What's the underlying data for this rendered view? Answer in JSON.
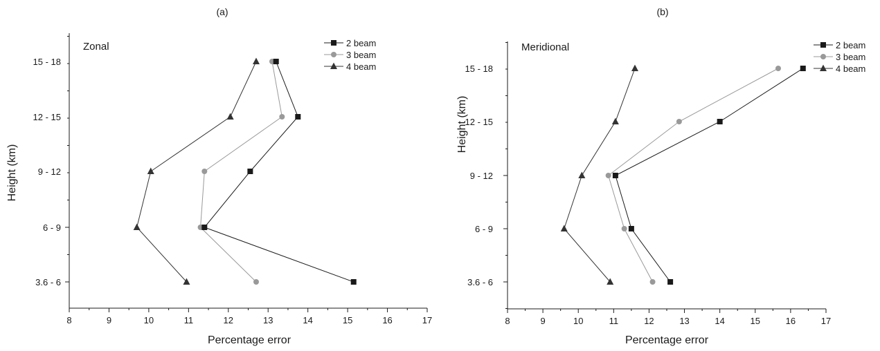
{
  "chart_data": [
    {
      "type": "line",
      "panel_label": "(a)",
      "title": "Zonal",
      "xlabel": "Percentage error",
      "ylabel": "Height (km)",
      "xlim": [
        8,
        17
      ],
      "x_ticks": [
        8,
        9,
        10,
        11,
        12,
        13,
        14,
        15,
        16,
        17
      ],
      "categories": [
        "3.6 - 6",
        "6 - 9",
        "9 - 12",
        "12 - 15",
        "15 - 18"
      ],
      "legend_position": "top-right",
      "series": [
        {
          "name": "2 beam",
          "marker": "square",
          "color": "#1a1a1a",
          "values": [
            15.15,
            11.4,
            12.55,
            13.75,
            13.2
          ]
        },
        {
          "name": "3 beam",
          "marker": "circle",
          "color": "#999999",
          "values": [
            12.7,
            11.3,
            11.4,
            13.35,
            13.1
          ]
        },
        {
          "name": "4 beam",
          "marker": "triangle",
          "color": "#333333",
          "values": [
            10.95,
            9.7,
            10.05,
            12.05,
            12.7
          ]
        }
      ]
    },
    {
      "type": "line",
      "panel_label": "(b)",
      "title": "Meridional",
      "xlabel": "Percentage error",
      "ylabel": "Height (km)",
      "xlim": [
        8,
        17
      ],
      "x_ticks": [
        8,
        9,
        10,
        11,
        12,
        13,
        14,
        15,
        16,
        17
      ],
      "categories": [
        "3.6 - 6",
        "6 - 9",
        "9 - 12",
        "12 - 15",
        "15 - 18"
      ],
      "legend_position": "top-right",
      "series": [
        {
          "name": "2 beam",
          "marker": "square",
          "color": "#1a1a1a",
          "values": [
            12.6,
            11.5,
            11.05,
            14.0,
            16.35
          ]
        },
        {
          "name": "3 beam",
          "marker": "circle",
          "color": "#999999",
          "values": [
            12.1,
            11.3,
            10.85,
            12.85,
            15.65
          ]
        },
        {
          "name": "4 beam",
          "marker": "triangle",
          "color": "#333333",
          "values": [
            10.9,
            9.6,
            10.1,
            11.05,
            11.6
          ]
        }
      ]
    }
  ]
}
